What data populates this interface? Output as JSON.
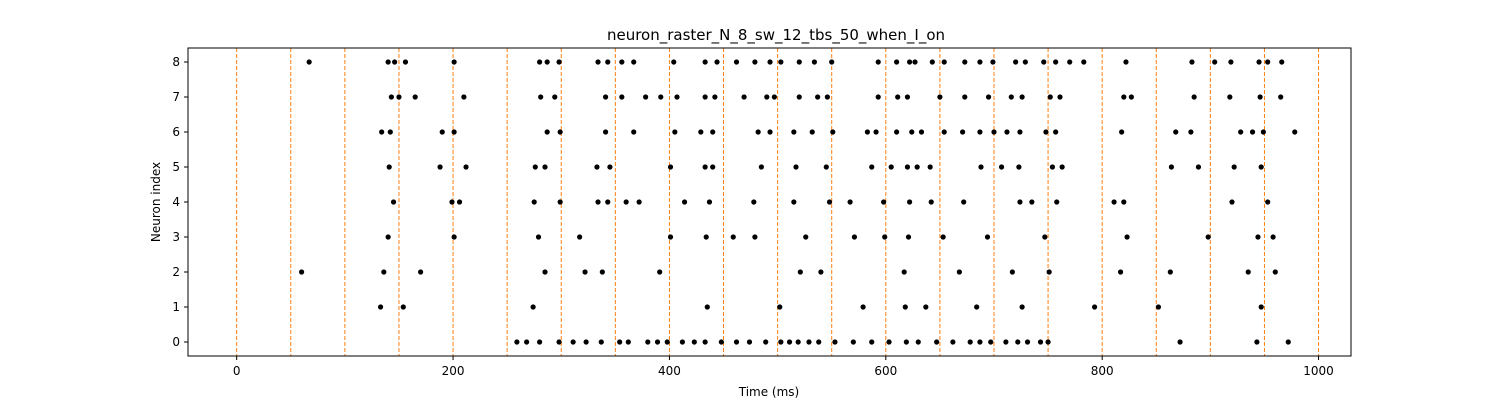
{
  "chart_data": {
    "type": "scatter",
    "title": "neuron_raster_N_8_sw_12_tbs_50_when_I_on",
    "xlabel": "Time (ms)",
    "ylabel": "Neuron index",
    "xlim": [
      -45,
      1030
    ],
    "ylim": [
      -0.4,
      8.4
    ],
    "xticks": [
      0,
      200,
      400,
      600,
      800,
      1000
    ],
    "yticks": [
      0,
      1,
      2,
      3,
      4,
      5,
      6,
      7,
      8
    ],
    "grid": false,
    "marker_color": "#000000",
    "vline_color": "#ff7f0e",
    "vlines": [
      0,
      50,
      100,
      150,
      200,
      250,
      300,
      350,
      400,
      450,
      500,
      550,
      600,
      650,
      700,
      750,
      800,
      850,
      900,
      950,
      1000
    ],
    "series": [
      {
        "neuron": 0,
        "spikes": [
          259,
          268,
          280,
          298,
          311,
          323,
          337,
          354,
          362,
          380,
          389,
          398,
          412,
          423,
          433,
          448,
          462,
          474,
          489,
          503,
          511,
          519,
          529,
          538,
          553,
          570,
          587,
          603,
          619,
          630,
          647,
          662,
          678,
          687,
          697,
          711,
          722,
          731,
          743,
          750,
          872,
          943,
          972
        ]
      },
      {
        "neuron": 1,
        "spikes": [
          133,
          154,
          274,
          435,
          502,
          579,
          618,
          637,
          684,
          726,
          793,
          852,
          947
        ]
      },
      {
        "neuron": 2,
        "spikes": [
          60,
          136,
          170,
          285,
          322,
          338,
          391,
          521,
          540,
          617,
          668,
          717,
          751,
          817,
          863,
          935,
          960
        ]
      },
      {
        "neuron": 3,
        "spikes": [
          140,
          201,
          279,
          317,
          401,
          434,
          459,
          479,
          526,
          571,
          599,
          621,
          653,
          694,
          747,
          823,
          898,
          944,
          958
        ]
      },
      {
        "neuron": 4,
        "spikes": [
          145,
          199,
          206,
          275,
          299,
          334,
          343,
          360,
          372,
          414,
          437,
          478,
          515,
          548,
          567,
          598,
          622,
          642,
          672,
          724,
          735,
          758,
          811,
          820,
          920,
          953
        ]
      },
      {
        "neuron": 5,
        "spikes": [
          141,
          188,
          212,
          276,
          285,
          333,
          345,
          401,
          433,
          440,
          485,
          517,
          545,
          587,
          605,
          620,
          629,
          641,
          688,
          707,
          723,
          754,
          763,
          864,
          889,
          922,
          947
        ]
      },
      {
        "neuron": 6,
        "spikes": [
          134,
          142,
          190,
          201,
          287,
          299,
          341,
          367,
          405,
          429,
          440,
          482,
          493,
          515,
          532,
          551,
          583,
          591,
          610,
          624,
          633,
          654,
          671,
          687,
          700,
          712,
          724,
          748,
          757,
          818,
          868,
          882,
          928,
          939,
          949,
          978
        ]
      },
      {
        "neuron": 7,
        "spikes": [
          143,
          150,
          165,
          210,
          281,
          294,
          341,
          356,
          378,
          392,
          407,
          433,
          442,
          469,
          490,
          497,
          520,
          537,
          546,
          593,
          611,
          620,
          650,
          673,
          695,
          716,
          726,
          752,
          761,
          820,
          827,
          885,
          918,
          946,
          965
        ]
      },
      {
        "neuron": 8,
        "spikes": [
          67,
          140,
          146,
          156,
          201,
          280,
          287,
          298,
          334,
          343,
          356,
          367,
          404,
          433,
          444,
          462,
          479,
          493,
          503,
          520,
          534,
          550,
          593,
          610,
          622,
          627,
          643,
          654,
          673,
          687,
          699,
          720,
          729,
          746,
          757,
          770,
          783,
          822,
          883,
          904,
          919,
          945,
          953,
          966
        ]
      }
    ]
  }
}
